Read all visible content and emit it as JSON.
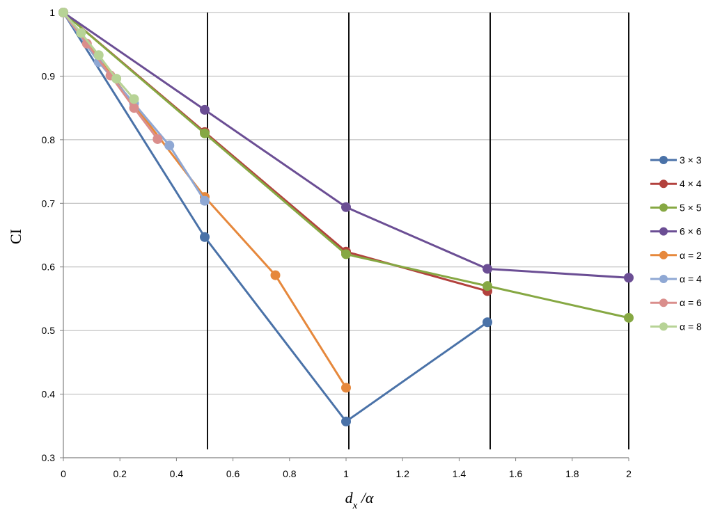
{
  "chart_data": {
    "type": "line",
    "xlabel": "d_x /α",
    "xlabel_main": "d",
    "xlabel_sub": "x",
    "xlabel_rest": " /α",
    "ylabel": "CI",
    "xlim": [
      0,
      2
    ],
    "ylim": [
      0.3,
      1
    ],
    "x_ticks": [
      "0",
      "0.2",
      "0.4",
      "0.6",
      "0.8",
      "1",
      "1.2",
      "1.4",
      "1.6",
      "1.8",
      "2"
    ],
    "y_ticks": [
      "0.3",
      "0.4",
      "0.5",
      "0.6",
      "0.7",
      "0.8",
      "0.9",
      "1"
    ],
    "grid": "horizontal",
    "legend_position": "right",
    "vertical_markers": [
      0.5,
      1.0,
      1.5,
      2.0
    ],
    "series": [
      {
        "name": "3 × 3",
        "color": "#4a72a8",
        "x": [
          0,
          0.5,
          1.0,
          1.5
        ],
        "y": [
          1.0,
          0.647,
          0.357,
          0.513
        ]
      },
      {
        "name": "4 × 4",
        "color": "#b2413d",
        "x": [
          0,
          0.5,
          1.0,
          1.5
        ],
        "y": [
          1.0,
          0.812,
          0.624,
          0.562
        ]
      },
      {
        "name": "5 × 5",
        "color": "#86a843",
        "x": [
          0,
          0.5,
          1.0,
          1.5,
          2.0
        ],
        "y": [
          1.0,
          0.81,
          0.62,
          0.57,
          0.52
        ]
      },
      {
        "name": "6 × 6",
        "color": "#6b4e94",
        "x": [
          0,
          0.5,
          1.0,
          1.5,
          2.0
        ],
        "y": [
          1.0,
          0.847,
          0.694,
          0.597,
          0.583
        ]
      },
      {
        "name": "α = 2",
        "color": "#e6883c",
        "x": [
          0,
          0.5,
          0.75,
          1.0
        ],
        "y": [
          1.0,
          0.71,
          0.587,
          0.41
        ]
      },
      {
        "name": "α = 4",
        "color": "#8fa8d4",
        "x": [
          0,
          0.125,
          0.25,
          0.375,
          0.5
        ],
        "y": [
          1.0,
          0.922,
          0.857,
          0.791,
          0.704
        ]
      },
      {
        "name": "α = 6",
        "color": "#da8e8c",
        "x": [
          0,
          0.0833,
          0.1667,
          0.25,
          0.3333
        ],
        "y": [
          1.0,
          0.951,
          0.901,
          0.85,
          0.801
        ]
      },
      {
        "name": "α = 8",
        "color": "#b7d396",
        "x": [
          0,
          0.0625,
          0.125,
          0.1875,
          0.25
        ],
        "y": [
          1.0,
          0.968,
          0.933,
          0.896,
          0.864
        ]
      }
    ]
  }
}
